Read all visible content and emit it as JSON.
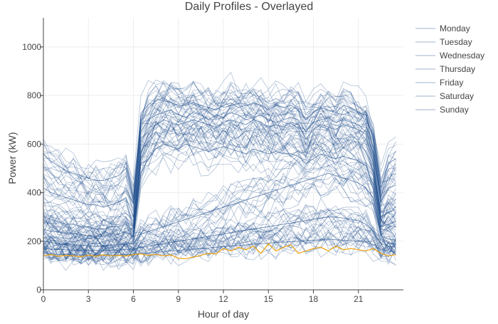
{
  "chart_data": {
    "type": "line",
    "title": "Daily Profiles - Overlayed",
    "xlabel": "Hour of day",
    "ylabel": "Power (kW)",
    "xlim": [
      0,
      24
    ],
    "ylim": [
      0,
      1120
    ],
    "x_ticks": [
      0,
      3,
      6,
      9,
      12,
      15,
      18,
      21
    ],
    "x_tick_labels": [
      "0",
      "3",
      "6",
      "9",
      "12",
      "15",
      "18",
      "21"
    ],
    "y_ticks": [
      0,
      200,
      400,
      600,
      800,
      1000
    ],
    "y_tick_labels": [
      "0",
      "200",
      "400",
      "600",
      "800",
      "1000"
    ],
    "grid": true,
    "legend_position": "right",
    "profile_color": "#1f4e8c",
    "highlight_color": "#f0a30a",
    "x": [
      0,
      0.5,
      1,
      1.5,
      2,
      2.5,
      3,
      3.5,
      4,
      4.5,
      5,
      5.5,
      6,
      6.5,
      7,
      7.5,
      8,
      8.5,
      9,
      9.5,
      10,
      10.5,
      11,
      11.5,
      12,
      12.5,
      13,
      13.5,
      14,
      14.5,
      15,
      15.5,
      16,
      16.5,
      17,
      17.5,
      18,
      18.5,
      19,
      19.5,
      20,
      20.5,
      21,
      21.5,
      22,
      22.5,
      23,
      23.5
    ],
    "series": [
      {
        "name": "Monday",
        "values": [
          560,
          530,
          510,
          490,
          480,
          470,
          460,
          450,
          450,
          460,
          470,
          500,
          380,
          690,
          750,
          780,
          790,
          770,
          760,
          760,
          770,
          760,
          750,
          740,
          760,
          770,
          750,
          760,
          770,
          760,
          740,
          760,
          750,
          760,
          740,
          700,
          730,
          750,
          740,
          730,
          760,
          750,
          730,
          720,
          620,
          420,
          520,
          540
        ]
      },
      {
        "name": "Tuesday",
        "values": [
          420,
          400,
          390,
          380,
          370,
          360,
          350,
          350,
          340,
          350,
          360,
          380,
          300,
          650,
          700,
          720,
          730,
          740,
          720,
          710,
          730,
          720,
          700,
          720,
          710,
          730,
          720,
          700,
          710,
          720,
          700,
          690,
          700,
          710,
          700,
          650,
          690,
          700,
          710,
          690,
          700,
          690,
          680,
          650,
          560,
          360,
          420,
          430
        ]
      },
      {
        "name": "Wednesday",
        "values": [
          300,
          290,
          280,
          270,
          270,
          260,
          260,
          250,
          250,
          260,
          260,
          270,
          240,
          560,
          640,
          680,
          700,
          690,
          680,
          690,
          700,
          690,
          680,
          670,
          690,
          700,
          690,
          680,
          700,
          690,
          670,
          680,
          670,
          690,
          680,
          620,
          660,
          680,
          670,
          660,
          680,
          670,
          660,
          640,
          520,
          300,
          320,
          330
        ]
      },
      {
        "name": "Thursday",
        "values": [
          250,
          240,
          240,
          230,
          230,
          230,
          220,
          220,
          220,
          230,
          230,
          240,
          220,
          480,
          540,
          580,
          600,
          590,
          580,
          600,
          590,
          580,
          570,
          580,
          590,
          580,
          570,
          560,
          580,
          570,
          560,
          570,
          560,
          560,
          550,
          520,
          540,
          560,
          550,
          540,
          550,
          540,
          530,
          510,
          430,
          260,
          270,
          280
        ]
      },
      {
        "name": "Friday",
        "values": [
          200,
          195,
          190,
          190,
          185,
          185,
          180,
          180,
          180,
          185,
          185,
          190,
          190,
          230,
          240,
          250,
          260,
          270,
          280,
          290,
          300,
          310,
          320,
          330,
          340,
          350,
          360,
          370,
          380,
          390,
          400,
          410,
          420,
          430,
          440,
          450,
          460,
          470,
          480,
          470,
          460,
          450,
          440,
          420,
          380,
          220,
          210,
          205
        ]
      },
      {
        "name": "Saturday",
        "values": [
          170,
          168,
          166,
          165,
          164,
          163,
          162,
          162,
          162,
          163,
          164,
          166,
          168,
          175,
          180,
          185,
          190,
          195,
          200,
          205,
          210,
          215,
          220,
          225,
          230,
          235,
          240,
          245,
          250,
          255,
          260,
          265,
          270,
          275,
          280,
          285,
          290,
          295,
          300,
          300,
          295,
          290,
          285,
          270,
          240,
          190,
          180,
          175
        ]
      },
      {
        "name": "Sunday",
        "values": [
          150,
          148,
          146,
          145,
          144,
          143,
          142,
          142,
          142,
          143,
          144,
          145,
          146,
          150,
          152,
          155,
          158,
          160,
          162,
          165,
          168,
          170,
          172,
          175,
          178,
          180,
          182,
          185,
          188,
          190,
          192,
          195,
          196,
          198,
          200,
          202,
          204,
          206,
          208,
          206,
          204,
          202,
          200,
          195,
          185,
          165,
          160,
          155
        ]
      }
    ],
    "highlight_series": {
      "values": [
        140,
        145,
        138,
        142,
        140,
        136,
        143,
        138,
        144,
        140,
        142,
        139,
        145,
        148,
        142,
        146,
        140,
        144,
        130,
        128,
        135,
        142,
        150,
        148,
        170,
        160,
        175,
        165,
        180,
        150,
        190,
        160,
        175,
        185,
        150,
        160,
        170,
        175,
        160,
        180,
        165,
        170,
        165,
        160,
        170,
        150,
        140,
        145
      ]
    }
  }
}
